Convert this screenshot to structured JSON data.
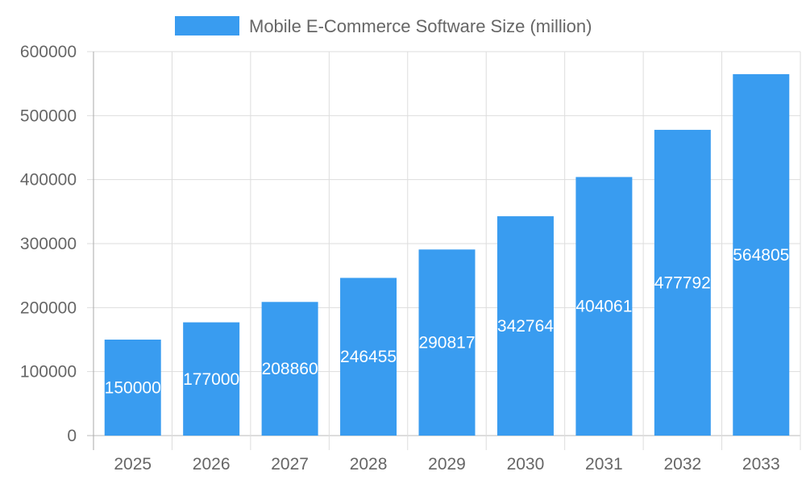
{
  "chart_data": {
    "type": "bar",
    "title": "",
    "xlabel": "",
    "ylabel": "",
    "categories": [
      "2025",
      "2026",
      "2027",
      "2028",
      "2029",
      "2030",
      "2031",
      "2032",
      "2033"
    ],
    "series": [
      {
        "name": "Mobile E-Commerce Software Size (million)",
        "values": [
          150000,
          177000,
          208860,
          246455,
          290817,
          342764,
          404061,
          477792,
          564805
        ],
        "color": "#399cf0"
      }
    ],
    "ylim": [
      0,
      600000
    ],
    "yticks": [
      0,
      100000,
      200000,
      300000,
      400000,
      500000,
      600000
    ],
    "grid": true,
    "legend_position": "top",
    "data_labels": true
  }
}
